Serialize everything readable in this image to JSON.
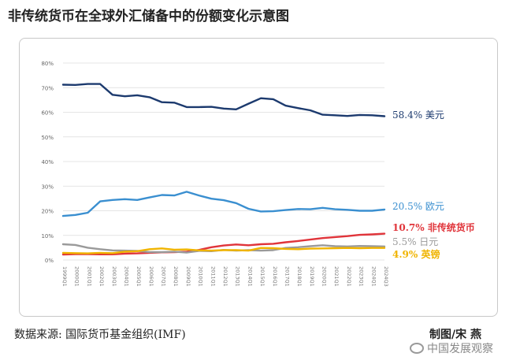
{
  "page": {
    "title": "非传统货币在全球外汇储备中的份额变化示意图"
  },
  "chart_data": {
    "type": "line",
    "title": "非传统货币在全球外汇储备中的份额变化示意图",
    "ylim": [
      0,
      80
    ],
    "y_ticks": [
      "0%",
      "10%",
      "20%",
      "30%",
      "40%",
      "50%",
      "60%",
      "70%",
      "80%"
    ],
    "x": [
      "1999Q1",
      "2000Q1",
      "2001Q1",
      "2002Q1",
      "2003Q1",
      "2004Q1",
      "2005Q1",
      "2006Q1",
      "2007Q1",
      "2008Q1",
      "2009Q1",
      "2010Q1",
      "2011Q1",
      "2012Q1",
      "2013Q1",
      "2014Q1",
      "2015Q1",
      "2016Q1",
      "2017Q1",
      "2018Q1",
      "2019Q1",
      "2020Q1",
      "2021Q1",
      "2022Q1",
      "2023Q1",
      "2024Q1",
      "2024Q3"
    ],
    "series": [
      {
        "name": "美元",
        "label": "58.4% 美元",
        "color": "#1c3a6e",
        "values": [
          71.2,
          71.1,
          71.5,
          71.5,
          67.1,
          66.5,
          66.9,
          66.1,
          64.1,
          63.9,
          62.1,
          62.1,
          62.2,
          61.5,
          61.2,
          63.5,
          65.7,
          65.3,
          62.7,
          61.7,
          60.8,
          59.0,
          58.8,
          58.5,
          58.9,
          58.8,
          58.4
        ]
      },
      {
        "name": "欧元",
        "label": "20.5% 欧元",
        "color": "#3a8fd0",
        "values": [
          17.9,
          18.3,
          19.2,
          23.8,
          24.4,
          24.7,
          24.4,
          25.4,
          26.4,
          26.2,
          27.7,
          26.2,
          24.9,
          24.3,
          23.1,
          20.8,
          19.7,
          19.8,
          20.3,
          20.7,
          20.6,
          21.2,
          20.6,
          20.4,
          20.0,
          20.0,
          20.5
        ]
      },
      {
        "name": "非传统货币",
        "label": "10.7% 非传统货币",
        "color": "#e0343a",
        "values": [
          2.2,
          2.4,
          2.4,
          2.3,
          2.3,
          2.6,
          2.7,
          2.9,
          3.1,
          3.2,
          3.4,
          4.1,
          5.2,
          5.9,
          6.3,
          6.0,
          6.4,
          6.6,
          7.2,
          7.7,
          8.3,
          8.9,
          9.3,
          9.7,
          10.2,
          10.4,
          10.7
        ]
      },
      {
        "name": "日元",
        "label": "5.5% 日元",
        "color": "#9a9a9a",
        "values": [
          6.4,
          6.1,
          5.0,
          4.4,
          3.9,
          3.8,
          3.7,
          3.2,
          3.2,
          3.4,
          3.0,
          3.7,
          3.6,
          4.1,
          3.8,
          4.0,
          3.8,
          4.0,
          4.9,
          5.2,
          5.6,
          6.0,
          5.6,
          5.5,
          5.7,
          5.6,
          5.5
        ]
      },
      {
        "name": "英镑",
        "label": "4.9% 英镑",
        "color": "#f0b400",
        "values": [
          2.9,
          2.8,
          2.7,
          2.9,
          2.8,
          3.4,
          3.6,
          4.4,
          4.7,
          4.2,
          4.3,
          3.9,
          3.8,
          4.0,
          4.0,
          3.8,
          4.9,
          4.8,
          4.5,
          4.4,
          4.6,
          4.7,
          4.8,
          4.9,
          4.8,
          4.9,
          4.9
        ]
      }
    ]
  },
  "footer": {
    "source": "数据来源: 国际货币基金组织(IMF)",
    "credit": "制图/宋 燕",
    "watermark": "中国发展观察"
  }
}
